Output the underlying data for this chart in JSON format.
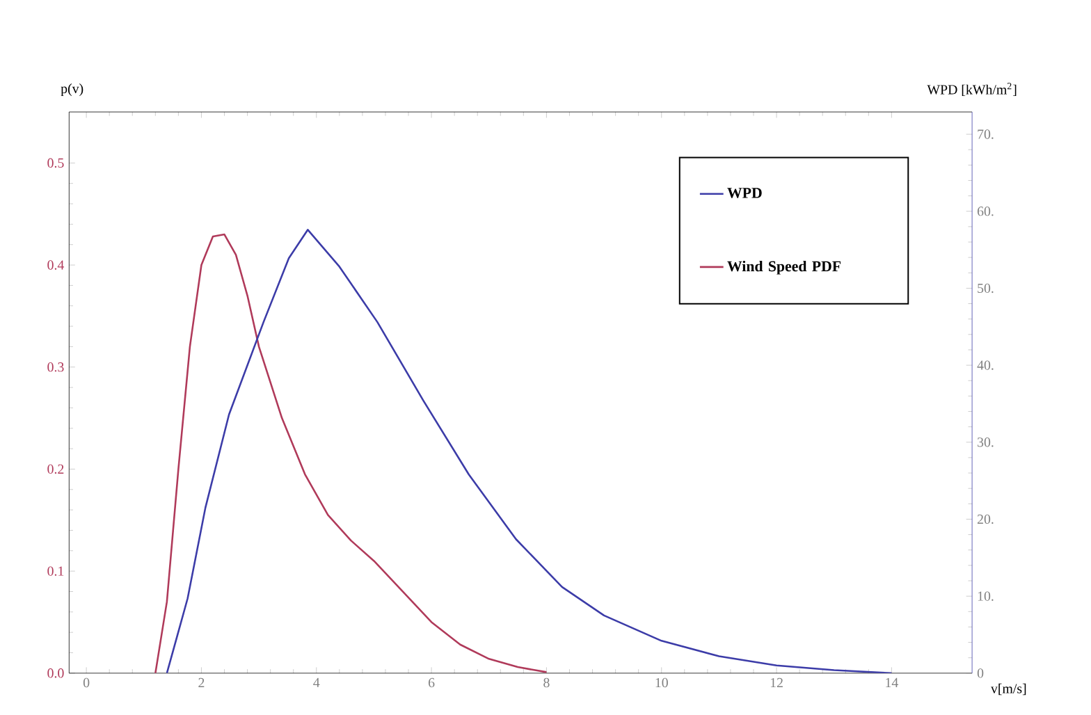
{
  "chart_data": {
    "type": "line",
    "xlabel": "v[m/s]",
    "ylabel": "p(v)",
    "y2label": "WPD [kWh/m$^{2}$]",
    "xlim": [
      -0.3,
      15.4
    ],
    "xticks": [
      0,
      2,
      4,
      6,
      8,
      10,
      12,
      14
    ],
    "ylim": [
      0,
      0.55
    ],
    "yticks": [
      {
        "value": 0,
        "label": "0.0"
      },
      {
        "value": 0.1,
        "label": "0.1"
      },
      {
        "value": 0.2,
        "label": "0.2"
      },
      {
        "value": 0.3,
        "label": "0.3"
      },
      {
        "value": 0.4,
        "label": "0.4"
      },
      {
        "value": 0.5,
        "label": "0.5"
      }
    ],
    "y2lim": [
      0,
      72.9
    ],
    "y2ticks": [
      0,
      {
        "value": 10,
        "label": "10."
      },
      {
        "value": 20,
        "label": "20."
      },
      {
        "value": 30,
        "label": "30."
      },
      {
        "value": 40,
        "label": "40."
      },
      {
        "value": 50,
        "label": "50."
      },
      {
        "value": 60,
        "label": "60."
      },
      {
        "value": 70,
        "label": "70."
      }
    ],
    "legend": "top right",
    "grid": false,
    "series": [
      {
        "name": "WPD",
        "color": "#3c3ca8",
        "axis": "y2",
        "x": [
          1.4,
          1.76,
          2.07,
          2.48,
          3.08,
          3.52,
          3.85,
          4.4,
          5.06,
          5.86,
          6.65,
          7.47,
          8.27,
          9.0,
          10.0,
          11.0,
          12.0,
          13.0,
          14.0
        ],
        "values": [
          0,
          9.7,
          21.5,
          33.6,
          45.6,
          53.9,
          57.6,
          52.8,
          45.6,
          35.4,
          25.8,
          17.4,
          11.2,
          7.5,
          4.2,
          2.2,
          1.0,
          0.4,
          0
        ]
      },
      {
        "name": "Wind Speed PDF",
        "color": "#b03a5a",
        "axis": "y",
        "x": [
          1.2,
          1.4,
          1.6,
          1.8,
          2.0,
          2.2,
          2.4,
          2.6,
          2.8,
          3.0,
          3.4,
          3.8,
          4.2,
          4.6,
          5.0,
          5.5,
          6.0,
          6.5,
          7.0,
          7.5,
          8.0
        ],
        "values": [
          0,
          0.07,
          0.2,
          0.32,
          0.4,
          0.428,
          0.43,
          0.41,
          0.37,
          0.32,
          0.25,
          0.195,
          0.155,
          0.13,
          0.11,
          0.08,
          0.05,
          0.028,
          0.014,
          0.006,
          0.001
        ]
      }
    ]
  }
}
